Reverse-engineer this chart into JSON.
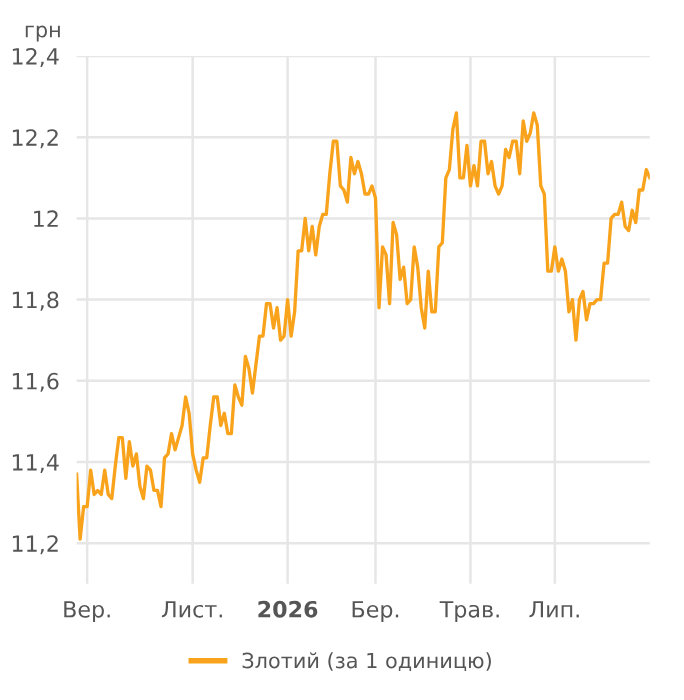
{
  "chart_data": {
    "type": "line",
    "ylabel": "грн",
    "categories": [
      null,
      null,
      null,
      "Вер.",
      null,
      null,
      null,
      null,
      null,
      null,
      null,
      null,
      null,
      null,
      null,
      null,
      null,
      null,
      null,
      null,
      null,
      null,
      null,
      null,
      null,
      null,
      null,
      null,
      null,
      null,
      null,
      null,
      null,
      "Лист.",
      null,
      null,
      null,
      null,
      null,
      null,
      null,
      null,
      null,
      null,
      null,
      null,
      null,
      null,
      null,
      null,
      null,
      null,
      null,
      null,
      null,
      null,
      null,
      null,
      null,
      null,
      "2026",
      null,
      null,
      null,
      null,
      null,
      null,
      null,
      null,
      null,
      null,
      null,
      null,
      null,
      null,
      null,
      null,
      null,
      null,
      null,
      null,
      null,
      null,
      null,
      null,
      "Бер.",
      null,
      null,
      null,
      null,
      null,
      null,
      null,
      null,
      null,
      null,
      null,
      null,
      null,
      null,
      null,
      null,
      null,
      null,
      null,
      null,
      null,
      null,
      null,
      null,
      null,
      null,
      "Трав.",
      null,
      null,
      null,
      null,
      null,
      null,
      null,
      null,
      null,
      null,
      null,
      null,
      null,
      null,
      null,
      null,
      null,
      null,
      null,
      null,
      null,
      null,
      null,
      "Лип.",
      null,
      null,
      null,
      null,
      null,
      null,
      null,
      null,
      null,
      null,
      null,
      null,
      null,
      null,
      null,
      null,
      null,
      null,
      null,
      null,
      null,
      null,
      null,
      null,
      null,
      null,
      null
    ],
    "series": [
      {
        "name": "Злотий (за 1 одиницю)",
        "color": "#f8a31b",
        "values": [
          11.37,
          11.21,
          11.29,
          11.29,
          11.38,
          11.32,
          11.33,
          11.32,
          11.38,
          11.32,
          11.31,
          11.39,
          11.46,
          11.46,
          11.36,
          11.45,
          11.39,
          11.42,
          11.34,
          11.31,
          11.39,
          11.38,
          11.33,
          11.33,
          11.29,
          11.41,
          11.42,
          11.47,
          11.43,
          11.46,
          11.49,
          11.56,
          11.52,
          11.42,
          11.38,
          11.35,
          11.41,
          11.41,
          11.49,
          11.56,
          11.56,
          11.49,
          11.52,
          11.47,
          11.47,
          11.59,
          11.56,
          11.54,
          11.66,
          11.63,
          11.57,
          11.64,
          11.71,
          11.71,
          11.79,
          11.79,
          11.73,
          11.78,
          11.7,
          11.71,
          11.8,
          11.71,
          11.77,
          11.92,
          11.92,
          12.0,
          11.92,
          11.98,
          11.91,
          11.98,
          12.01,
          12.01,
          12.11,
          12.19,
          12.19,
          12.08,
          12.07,
          12.04,
          12.15,
          12.11,
          12.14,
          12.11,
          12.06,
          12.06,
          12.08,
          12.05,
          11.78,
          11.93,
          11.91,
          11.79,
          11.99,
          11.96,
          11.85,
          11.88,
          11.79,
          11.8,
          11.93,
          11.88,
          11.78,
          11.73,
          11.87,
          11.77,
          11.77,
          11.93,
          11.94,
          12.1,
          12.12,
          12.22,
          12.26,
          12.1,
          12.1,
          12.18,
          12.08,
          12.13,
          12.08,
          12.19,
          12.19,
          12.11,
          12.14,
          12.08,
          12.06,
          12.08,
          12.17,
          12.15,
          12.19,
          12.19,
          12.11,
          12.24,
          12.19,
          12.21,
          12.26,
          12.23,
          12.08,
          12.06,
          11.87,
          11.87,
          11.93,
          11.87,
          11.9,
          11.87,
          11.77,
          11.8,
          11.7,
          11.8,
          11.82,
          11.75,
          11.79,
          11.79,
          11.8,
          11.8,
          11.89,
          11.89,
          12.0,
          12.01,
          12.01,
          12.04,
          11.98,
          11.97,
          12.02,
          11.99,
          12.07,
          12.07,
          12.12,
          12.1
        ]
      }
    ],
    "ylim": [
      11.1,
      12.4
    ],
    "yticks": [
      {
        "value": 11.2,
        "label": "11,2"
      },
      {
        "value": 11.4,
        "label": "11,4"
      },
      {
        "value": 11.6,
        "label": "11,6"
      },
      {
        "value": 11.8,
        "label": "11,8"
      },
      {
        "value": 12,
        "label": "12"
      },
      {
        "value": 12.2,
        "label": "12,2"
      },
      {
        "value": 12.4,
        "label": "12,4"
      }
    ],
    "grid": true,
    "legend": "bottom"
  }
}
